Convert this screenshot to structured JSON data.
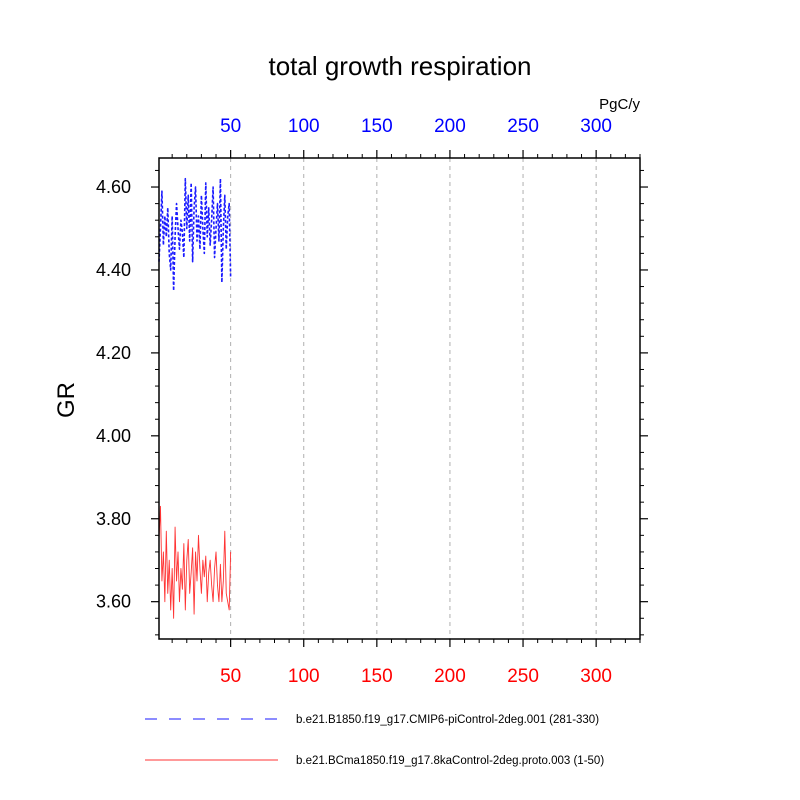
{
  "colors": {
    "series1": "#1a1aff",
    "series2": "#ff3333",
    "top_axis": "#0000ff",
    "bottom_axis": "#ff0000",
    "grid": "#b0b0b0"
  },
  "chart_data": {
    "type": "line",
    "title": "total growth respiration",
    "units": "PgC/y",
    "ylabel": "GR",
    "xlim": [
      1,
      330
    ],
    "ylim": [
      3.51,
      4.67
    ],
    "yticks": [
      3.6,
      3.8,
      4.0,
      4.2,
      4.4,
      4.6
    ],
    "ytick_labels": [
      "3.60",
      "3.80",
      "4.00",
      "4.20",
      "4.40",
      "4.60"
    ],
    "xticks": [
      50,
      100,
      150,
      200,
      250,
      300
    ],
    "xtick_labels": [
      "50",
      "100",
      "150",
      "200",
      "250",
      "300"
    ],
    "series": [
      {
        "name": "b.e21.B1850.f19_g17.CMIP6-piControl-2deg.001 (281-330)",
        "style": "dashed",
        "x": [
          1,
          2,
          3,
          4,
          5,
          6,
          7,
          8,
          9,
          10,
          11,
          12,
          13,
          14,
          15,
          16,
          17,
          18,
          19,
          20,
          21,
          22,
          23,
          24,
          25,
          26,
          27,
          28,
          29,
          30,
          31,
          32,
          33,
          34,
          35,
          36,
          37,
          38,
          39,
          40,
          41,
          42,
          43,
          44,
          45,
          46,
          47,
          48,
          49,
          50
        ],
        "values": [
          4.42,
          4.5,
          4.59,
          4.46,
          4.53,
          4.48,
          4.55,
          4.44,
          4.4,
          4.53,
          4.35,
          4.48,
          4.56,
          4.5,
          4.45,
          4.52,
          4.49,
          4.43,
          4.62,
          4.5,
          4.58,
          4.47,
          4.61,
          4.42,
          4.55,
          4.6,
          4.47,
          4.53,
          4.45,
          4.58,
          4.5,
          4.44,
          4.61,
          4.48,
          4.55,
          4.46,
          4.52,
          4.6,
          4.43,
          4.5,
          4.56,
          4.47,
          4.62,
          4.37,
          4.5,
          4.58,
          4.45,
          4.53,
          4.56,
          4.38
        ]
      },
      {
        "name": "b.e21.BCma1850.f19_g17.8kaControl-2deg.proto.003 (1-50)",
        "style": "solid",
        "x": [
          1,
          2,
          3,
          4,
          5,
          6,
          7,
          8,
          9,
          10,
          11,
          12,
          13,
          14,
          15,
          16,
          17,
          18,
          19,
          20,
          21,
          22,
          23,
          24,
          25,
          26,
          27,
          28,
          29,
          30,
          31,
          32,
          33,
          34,
          35,
          36,
          37,
          38,
          39,
          40,
          41,
          42,
          43,
          44,
          45,
          46,
          47,
          48,
          49,
          50
        ],
        "values": [
          3.75,
          3.83,
          3.65,
          3.72,
          3.6,
          3.77,
          3.62,
          3.7,
          3.58,
          3.68,
          3.56,
          3.78,
          3.65,
          3.72,
          3.6,
          3.68,
          3.63,
          3.74,
          3.58,
          3.7,
          3.75,
          3.62,
          3.67,
          3.73,
          3.57,
          3.72,
          3.65,
          3.76,
          3.68,
          3.62,
          3.7,
          3.66,
          3.71,
          3.6,
          3.67,
          3.7,
          3.64,
          3.6,
          3.68,
          3.72,
          3.64,
          3.6,
          3.69,
          3.6,
          3.65,
          3.77,
          3.62,
          3.6,
          3.58,
          3.72
        ]
      }
    ]
  }
}
